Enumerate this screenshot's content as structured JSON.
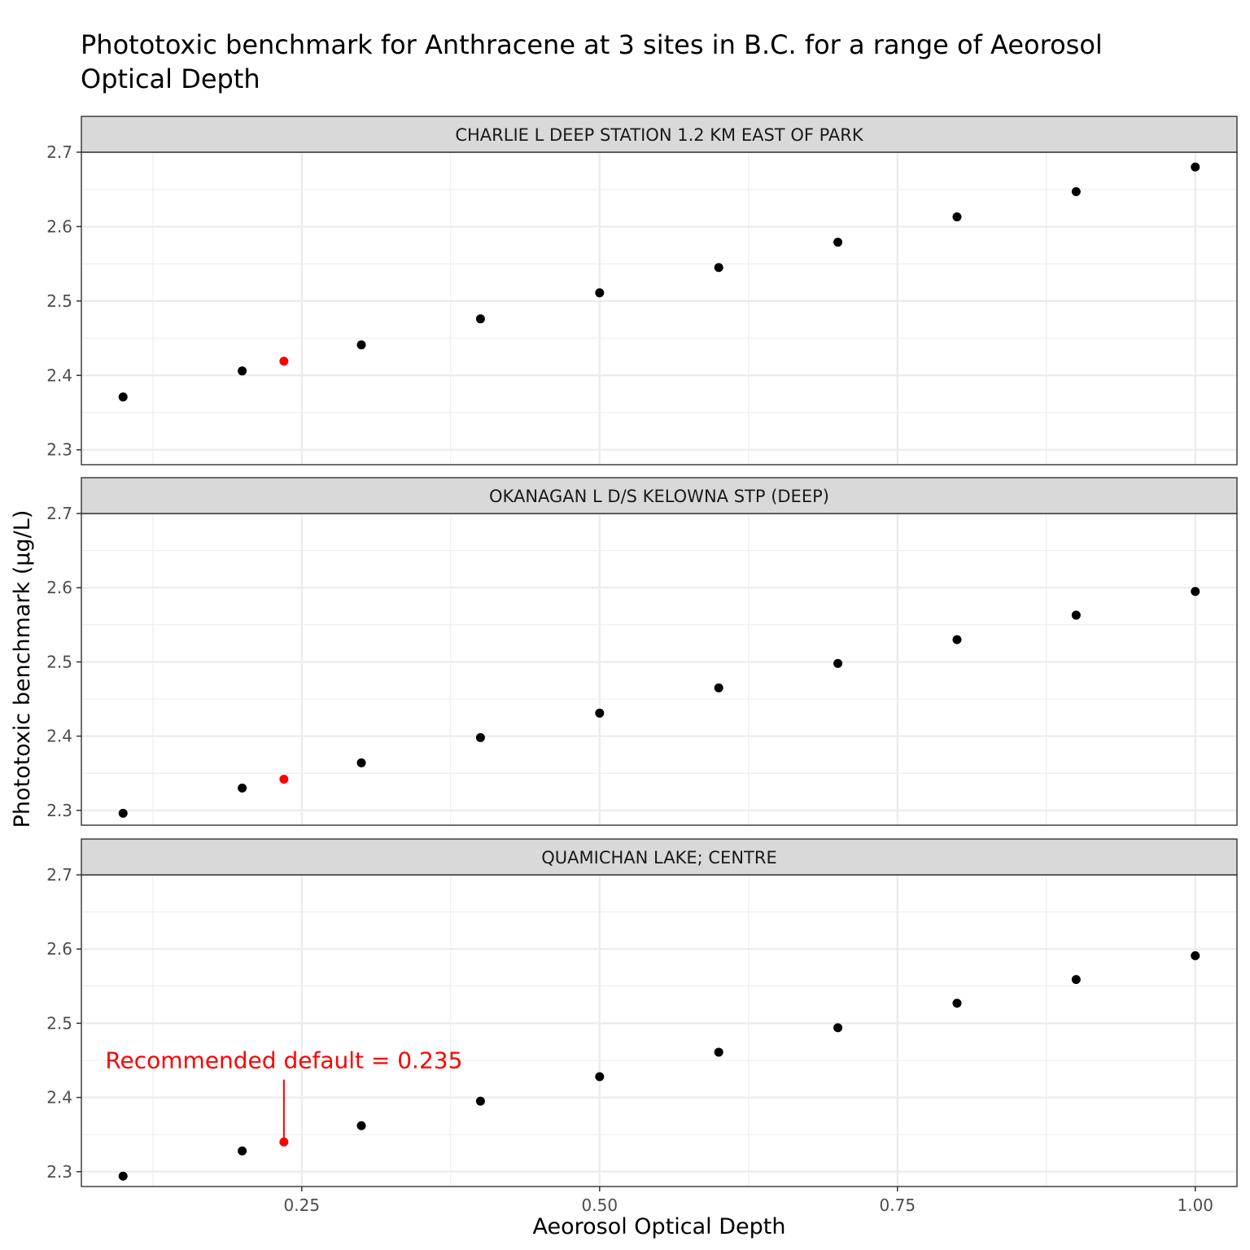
{
  "chart_data": {
    "type": "scatter",
    "title_lines": [
      "Phototoxic benchmark for Anthracene at 3 sites in B.C. for a range of Aeorosol",
      "Optical Depth"
    ],
    "xlabel": "Aeorosol Optical Depth",
    "ylabel": "Phototoxic benchmark (µg/L)",
    "xlim": [
      0.065,
      1.035
    ],
    "ylim": [
      2.28,
      2.7
    ],
    "x_ticks": [
      0.25,
      0.5,
      0.75,
      1.0
    ],
    "x_tick_labels": [
      "0.25",
      "0.50",
      "0.75",
      "1.00"
    ],
    "y_ticks": [
      2.3,
      2.4,
      2.5,
      2.6,
      2.7
    ],
    "y_tick_labels": [
      "2.3",
      "2.4",
      "2.5",
      "2.6",
      "2.7"
    ],
    "grid": true,
    "colors": {
      "point": "#000000",
      "highlight": "#ff0000",
      "strip_fill": "#d9d9d9",
      "grid": "#ebebeb"
    },
    "panels": [
      {
        "strip": "CHARLIE L DEEP STATION 1.2 KM EAST OF PARK",
        "x": [
          0.1,
          0.2,
          0.3,
          0.4,
          0.5,
          0.6,
          0.7,
          0.8,
          0.9,
          1.0
        ],
        "y": [
          2.371,
          2.406,
          2.441,
          2.476,
          2.511,
          2.545,
          2.579,
          2.613,
          2.647,
          2.68
        ],
        "highlight": {
          "x": 0.235,
          "y": 2.419
        }
      },
      {
        "strip": "OKANAGAN L D/S KELOWNA STP (DEEP)",
        "x": [
          0.1,
          0.2,
          0.3,
          0.4,
          0.5,
          0.6,
          0.7,
          0.8,
          0.9,
          1.0
        ],
        "y": [
          2.296,
          2.33,
          2.364,
          2.398,
          2.431,
          2.465,
          2.498,
          2.53,
          2.563,
          2.595
        ],
        "highlight": {
          "x": 0.235,
          "y": 2.342
        }
      },
      {
        "strip": "QUAMICHAN LAKE; CENTRE",
        "x": [
          0.1,
          0.2,
          0.3,
          0.4,
          0.5,
          0.6,
          0.7,
          0.8,
          0.9,
          1.0
        ],
        "y": [
          2.294,
          2.328,
          2.362,
          2.395,
          2.428,
          2.461,
          2.494,
          2.527,
          2.559,
          2.591
        ],
        "highlight": {
          "x": 0.235,
          "y": 2.34
        },
        "annotation": {
          "text": "Recommended default = 0.235",
          "x": 0.235,
          "y_from": 2.424,
          "y_to": 2.34
        }
      }
    ]
  }
}
